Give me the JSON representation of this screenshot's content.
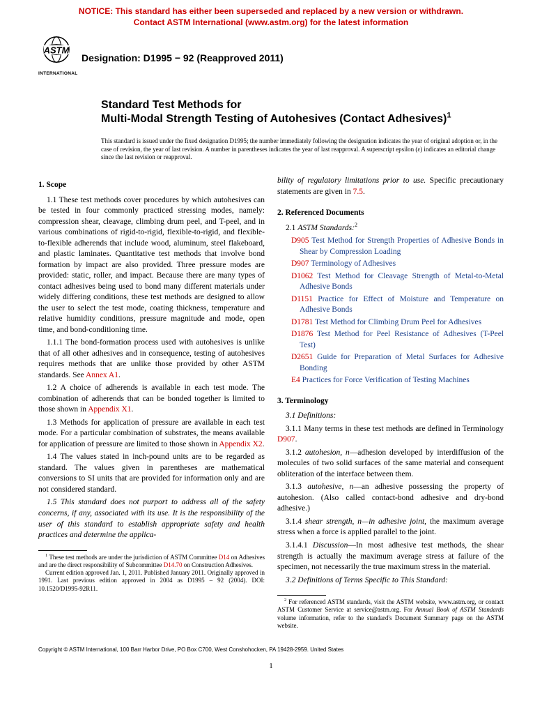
{
  "notice": {
    "line1": "NOTICE: This standard has either been superseded and replaced by a new version or withdrawn.",
    "line2": "Contact ASTM International (www.astm.org) for the latest information",
    "color": "#cc0000"
  },
  "logo": {
    "label": "INTERNATIONAL"
  },
  "designation": {
    "prefix": "Designation: ",
    "code": "D1995 − 92 (Reapproved 2011)"
  },
  "title": {
    "line1": "Standard Test Methods for",
    "line2": "Multi-Modal Strength Testing of Autohesives (Contact Adhesives)",
    "sup": "1"
  },
  "issued": "This standard is issued under the fixed designation D1995; the number immediately following the designation indicates the year of original adoption or, in the case of revision, the year of last revision. A number in parentheses indicates the year of last reapproval. A superscript epsilon (ε) indicates an editorial change since the last revision or reapproval.",
  "left": {
    "scope_head": "1. Scope",
    "p11_a": "1.1 These test methods cover procedures by which autohesives can be tested in four commonly practiced stressing modes, namely: compression shear, cleavage, climbing drum peel, and T-peel, and in various combinations of rigid-to-rigid, flexible-to-rigid, and flexible-to-flexible adherends that include wood, aluminum, steel flakeboard, and plastic laminates. Quantitative test methods that involve bond formation by impact are also provided. Three pressure modes are provided: static, roller, and impact. Because there are many types of contact adhesives being used to bond many different materials under widely differing conditions, these test methods are designed to allow the user to select the test mode, coating thickness, temperature and relative humidity conditions, pressure magnitude and mode, open time, and bond-conditioning time.",
    "p111_a": "1.1.1 The bond-formation process used with autohesives is unlike that of all other adhesives and in consequence, testing of autohesives requires methods that are unlike those provided by other ASTM standards. See ",
    "p111_link": "Annex A1",
    "p111_b": ".",
    "p12_a": "1.2 A choice of adherends is available in each test mode. The combination of adherends that can be bonded together is limited to those shown in ",
    "p12_link": "Appendix X1",
    "p12_b": ".",
    "p13_a": "1.3 Methods for application of pressure are available in each test mode. For a particular combination of substrates, the means available for application of pressure are limited to those shown in ",
    "p13_link": "Appendix X2",
    "p13_b": ".",
    "p14": "1.4 The values stated in inch-pound units are to be regarded as standard. The values given in parentheses are mathematical conversions to SI units that are provided for information only and are not considered standard.",
    "p15": "1.5 This standard does not purport to address all of the safety concerns, if any, associated with its use. It is the responsibility of the user of this standard to establish appropriate safety and health practices and determine the applica-",
    "fn1_a": "These test methods are under the jurisdiction of ASTM Committee ",
    "fn1_l1": "D14",
    "fn1_b": " on Adhesives and are the direct responsibility of Subcommittee ",
    "fn1_l2": "D14.70",
    "fn1_c": " on Construction Adhesives.",
    "fn1_p2": "Current edition approved Jan. 1, 2011. Published January 2011. Originally approved in 1991. Last previous edition approved in 2004 as D1995 – 92 (2004). DOI: 10.1520/D1995-92R11."
  },
  "right": {
    "cont_a": "bility of regulatory limitations prior to use.",
    "cont_b": " Specific precautionary statements are given in ",
    "cont_link": "7.5",
    "cont_c": ".",
    "ref_head": "2. Referenced Documents",
    "ref_sub_a": "2.1 ",
    "ref_sub_b": "ASTM Standards:",
    "ref_sup": "2",
    "refs": [
      {
        "code": "D905",
        "desc": "Test Method for Strength Properties of Adhesive Bonds in Shear by Compression Loading"
      },
      {
        "code": "D907",
        "desc": "Terminology of Adhesives"
      },
      {
        "code": "D1062",
        "desc": "Test Method for Cleavage Strength of Metal-to-Metal Adhesive Bonds"
      },
      {
        "code": "D1151",
        "desc": "Practice for Effect of Moisture and Temperature on Adhesive Bonds"
      },
      {
        "code": "D1781",
        "desc": "Test Method for Climbing Drum Peel for Adhesives"
      },
      {
        "code": "D1876",
        "desc": "Test Method for Peel Resistance of Adhesives (T-Peel Test)"
      },
      {
        "code": "D2651",
        "desc": "Guide for Preparation of Metal Surfaces for Adhesive Bonding"
      },
      {
        "code": "E4",
        "desc": "Practices for Force Verification of Testing Machines"
      }
    ],
    "term_head": "3. Terminology",
    "p31": "3.1 Definitions:",
    "p311_a": "3.1.1 Many terms in these test methods are defined in Terminology ",
    "p311_link": "D907",
    "p311_b": ".",
    "p312_a": "3.1.2 ",
    "p312_term": "autohesion, n",
    "p312_b": "—adhesion developed by interdiffusion of the molecules of two solid surfaces of the same material and consequent obliteration of the interface between them.",
    "p313_a": "3.1.3 ",
    "p313_term": "autohesive, n",
    "p313_b": "—an adhesive possessing the property of autohesion. (Also called contact-bond adhesive and dry-bond adhesive.)",
    "p314_a": "3.1.4 ",
    "p314_term": "shear strength, n—in adhesive joint",
    "p314_b": ", the maximum average stress when a force is applied parallel to the joint.",
    "p3141_a": "3.1.4.1 ",
    "p3141_term": "Discussion",
    "p3141_b": "—In most adhesive test methods, the shear strength is actually the maximum average stress at failure of the specimen, not necessarily the true maximum stress in the material.",
    "p32": "3.2 Definitions of Terms Specific to This Standard:",
    "fn2_a": "For referenced ASTM standards, visit the ASTM website, www.astm.org, or contact ASTM Customer Service at service@astm.org. For ",
    "fn2_b": "Annual Book of ASTM Standards",
    "fn2_c": " volume information, refer to the standard's Document Summary page on the ASTM website."
  },
  "copyright": "Copyright © ASTM International, 100 Barr Harbor Drive, PO Box C700, West Conshohocken, PA 19428-2959. United States",
  "pagenum": "1"
}
